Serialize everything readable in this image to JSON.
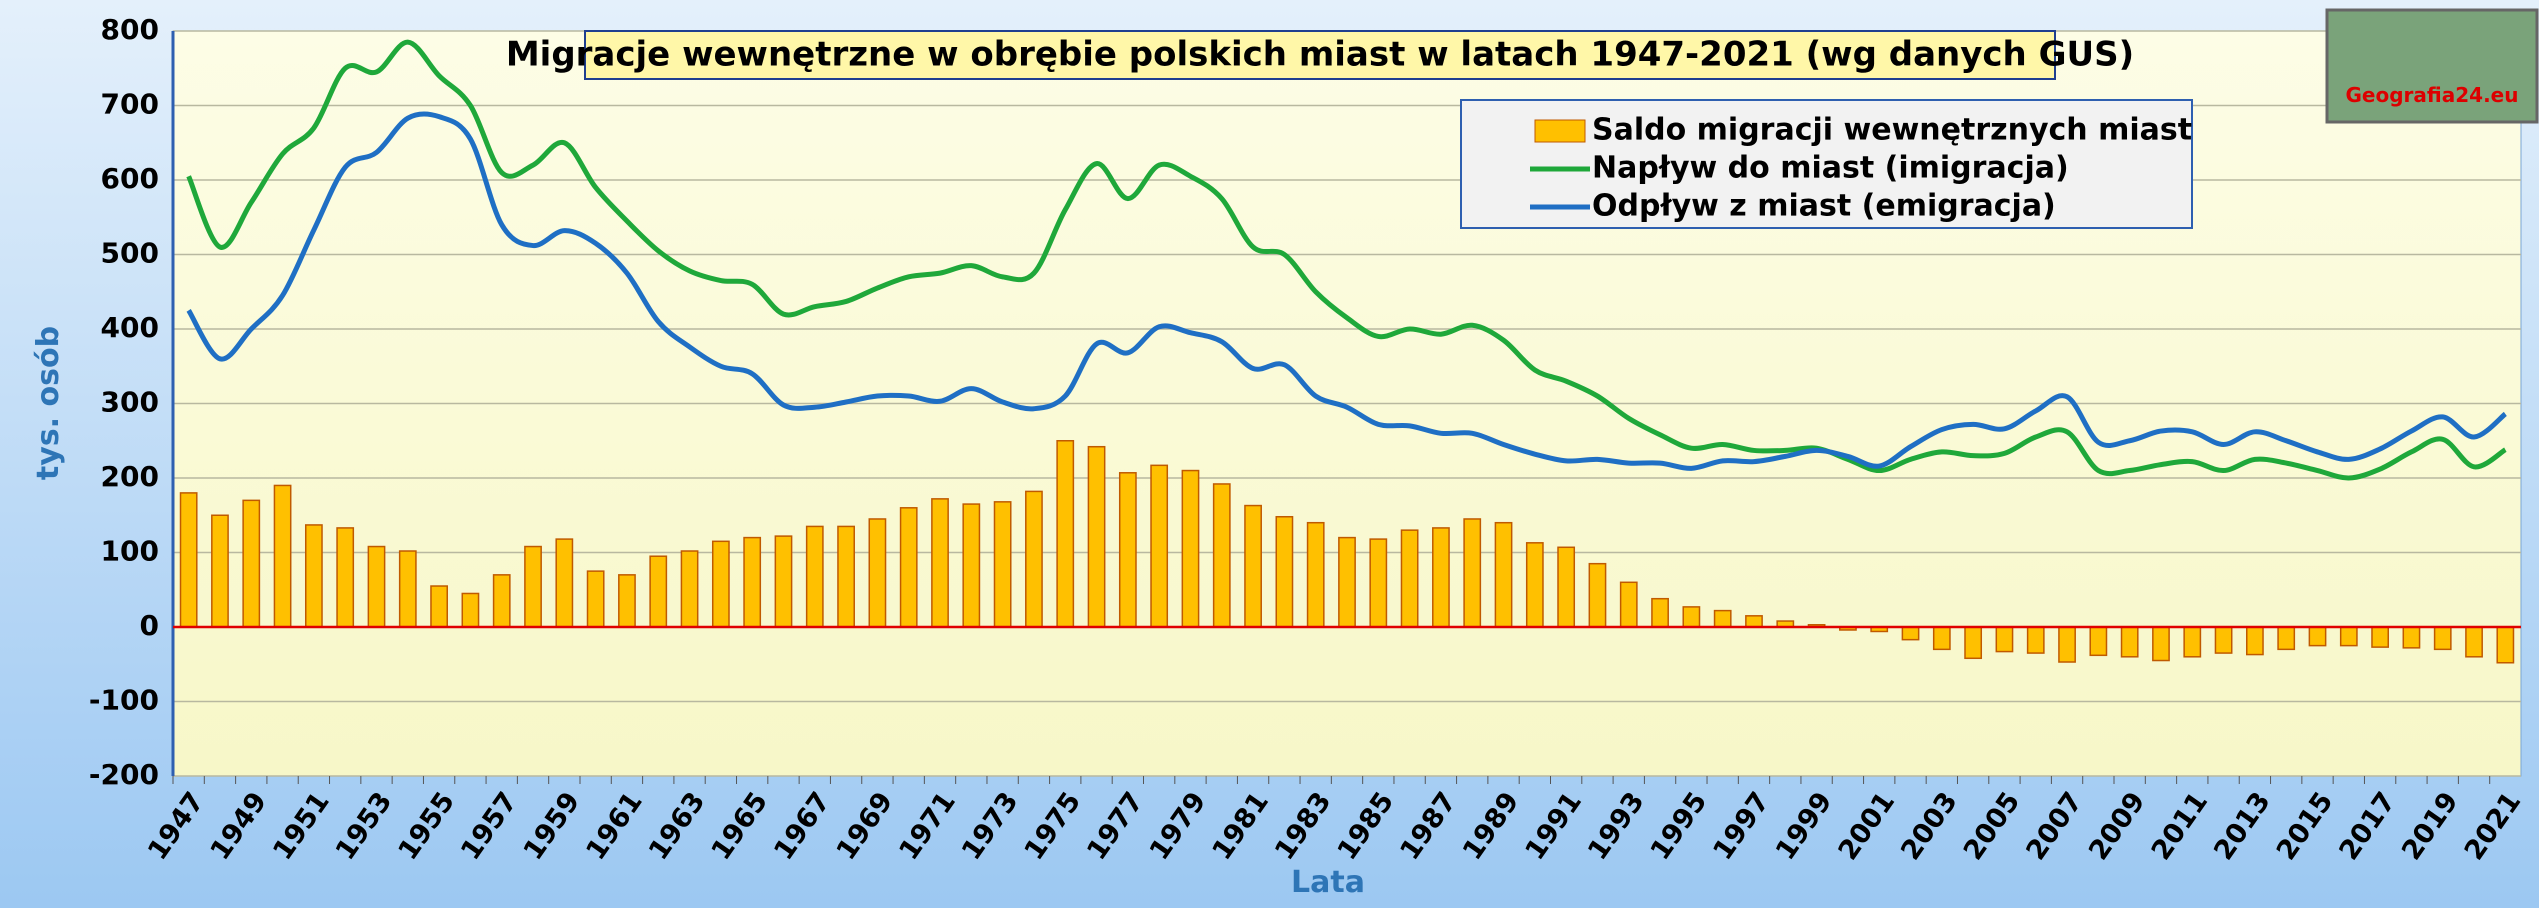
{
  "logo": "Geografia24.eu",
  "chart_data": {
    "type": "bar_line",
    "title": "Migracje wewnętrzne w obrębie polskich miast w latach 1947-2021 (wg danych GUS)",
    "xlabel": "Lata",
    "ylabel": "tys. osób",
    "categories": [
      "1947",
      null,
      "1949",
      null,
      "1951",
      null,
      "1953",
      null,
      "1955",
      null,
      "1957",
      null,
      "1959",
      null,
      "1961",
      null,
      "1963",
      null,
      "1965",
      null,
      "1967",
      null,
      "1969",
      null,
      "1971",
      null,
      "1973",
      null,
      "1975",
      null,
      "1977",
      null,
      "1979",
      null,
      "1981",
      null,
      "1983",
      null,
      "1985",
      null,
      "1987",
      null,
      "1989",
      null,
      "1991",
      null,
      "1993",
      null,
      "1995",
      null,
      "1997",
      null,
      "1999",
      null,
      "2001",
      null,
      "2003",
      null,
      "2005",
      null,
      "2007",
      null,
      "2009",
      null,
      "2011",
      null,
      "2013",
      null,
      "2015",
      null,
      "2017",
      null,
      "2019",
      null,
      "2021"
    ],
    "series": [
      {
        "name": "Saldo migracji wewnętrznych miast",
        "type": "bar",
        "color": "#ffc000",
        "values": [
          180,
          150,
          170,
          190,
          137,
          133,
          108,
          102,
          55,
          45,
          70,
          108,
          118,
          75,
          70,
          95,
          102,
          115,
          120,
          122,
          135,
          135,
          145,
          160,
          172,
          165,
          168,
          182,
          250,
          242,
          207,
          217,
          210,
          192,
          163,
          148,
          140,
          120,
          118,
          130,
          133,
          145,
          140,
          113,
          107,
          85,
          60,
          38,
          27,
          22,
          15,
          8,
          3,
          -4,
          -6,
          -17,
          -30,
          -42,
          -33,
          -35,
          -47,
          -38,
          -40,
          -45,
          -40,
          -35,
          -37,
          -30,
          -25,
          -25,
          -27,
          -28,
          -30,
          -40,
          -48
        ]
      },
      {
        "name": "Napływ do miast (imigracja)",
        "type": "line",
        "color": "#1fa83a",
        "values": [
          605,
          510,
          570,
          635,
          670,
          750,
          745,
          785,
          740,
          700,
          610,
          620,
          650,
          590,
          545,
          505,
          478,
          465,
          460,
          420,
          430,
          437,
          455,
          470,
          475,
          485,
          470,
          475,
          560,
          622,
          575,
          620,
          605,
          575,
          510,
          500,
          450,
          415,
          390,
          400,
          393,
          405,
          385,
          345,
          330,
          310,
          280,
          258,
          240,
          245,
          237,
          237,
          240,
          225,
          210,
          225,
          235,
          230,
          233,
          255,
          262,
          210,
          210,
          218,
          222,
          210,
          225,
          220,
          210,
          200,
          212,
          235,
          252,
          215,
          238
        ]
      },
      {
        "name": "Odpływ z miast (emigracja)",
        "type": "line",
        "color": "#1f6fc4",
        "values": [
          425,
          360,
          400,
          445,
          533,
          617,
          637,
          683,
          685,
          655,
          540,
          512,
          532,
          515,
          475,
          410,
          376,
          350,
          340,
          298,
          295,
          302,
          310,
          310,
          303,
          320,
          302,
          293,
          310,
          380,
          368,
          403,
          395,
          383,
          347,
          352,
          310,
          295,
          272,
          270,
          260,
          260,
          245,
          232,
          223,
          225,
          220,
          220,
          213,
          223,
          222,
          229,
          237,
          229,
          216,
          242,
          265,
          272,
          266,
          290,
          309,
          248,
          250,
          263,
          262,
          245,
          262,
          250,
          235,
          225,
          239,
          263,
          282,
          255,
          286
        ]
      }
    ],
    "ylim": [
      -200,
      800
    ],
    "yticks": [
      -200,
      -100,
      0,
      100,
      200,
      300,
      400,
      500,
      600,
      700,
      800
    ],
    "grid": true
  }
}
